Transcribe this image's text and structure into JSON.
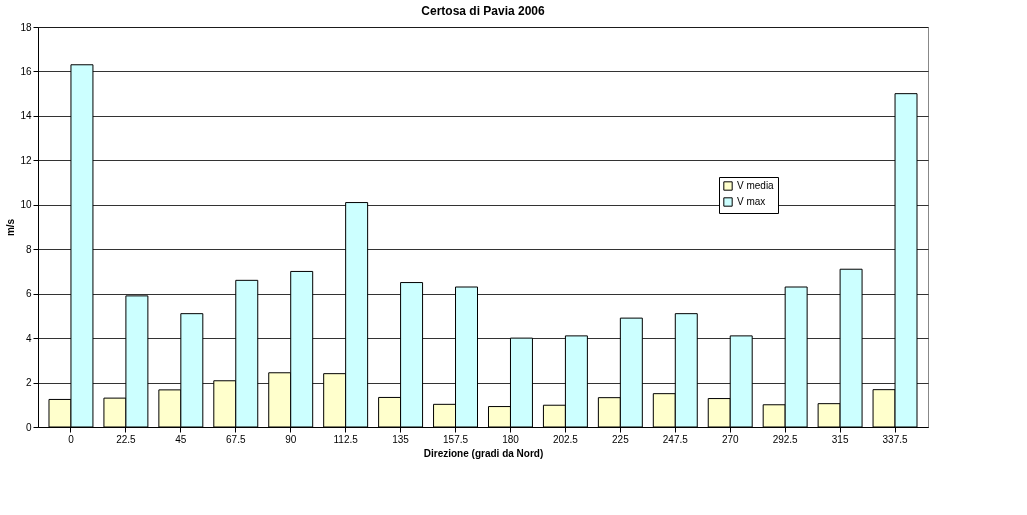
{
  "chart_data": {
    "type": "bar",
    "title": "Certosa di Pavia 2006",
    "xlabel": "Direzione (gradi da Nord)",
    "ylabel": "m/s",
    "categories": [
      "0",
      "22.5",
      "45",
      "67.5",
      "90",
      "112.5",
      "135",
      "157.5",
      "180",
      "202.5",
      "225",
      "247.5",
      "270",
      "292.5",
      "315",
      "337.5"
    ],
    "series": [
      {
        "name": "V media",
        "color": "#ffffcc",
        "values": [
          1.24,
          1.3,
          1.67,
          2.08,
          2.44,
          2.4,
          1.33,
          1.02,
          0.92,
          0.98,
          1.32,
          1.5,
          1.28,
          1.0,
          1.05,
          1.68
        ]
      },
      {
        "name": "V max",
        "color": "#ccffff",
        "values": [
          16.3,
          5.9,
          5.1,
          6.6,
          7.0,
          10.1,
          6.5,
          6.3,
          4.0,
          4.1,
          4.9,
          5.1,
          4.1,
          6.3,
          7.1,
          15.0
        ]
      }
    ],
    "ylim": [
      0,
      18
    ],
    "yticks": [
      0,
      2,
      4,
      6,
      8,
      10,
      12,
      14,
      16,
      18
    ],
    "grid": "y",
    "legend": "top right"
  }
}
